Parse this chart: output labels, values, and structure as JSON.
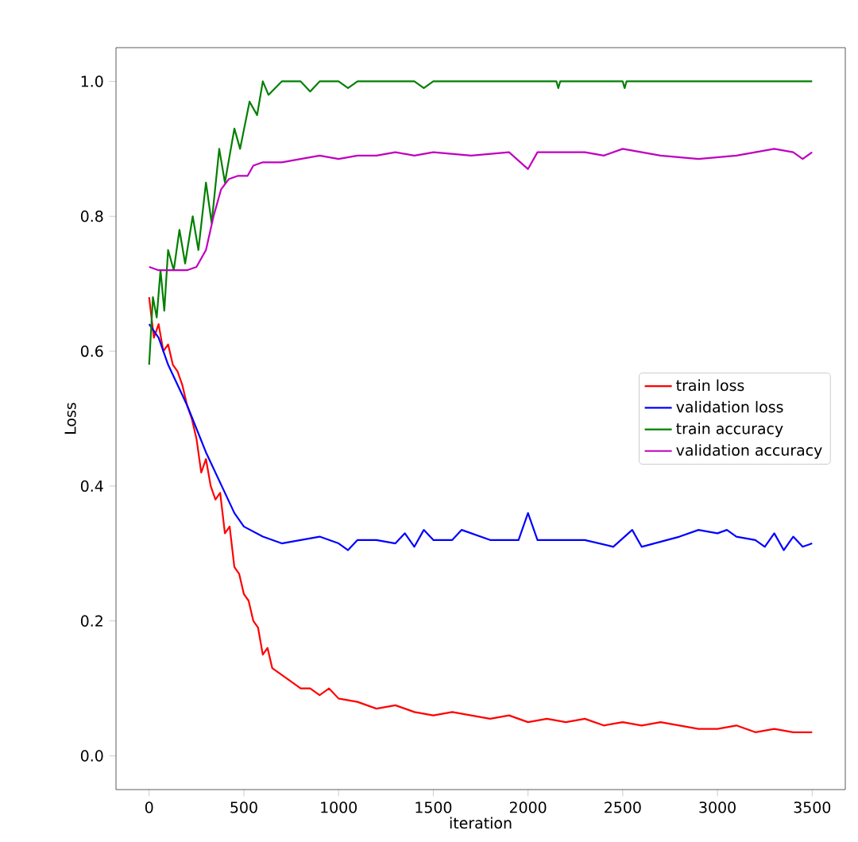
{
  "chart_data": {
    "type": "line",
    "xlabel": "iteration",
    "ylabel": "Loss",
    "xlim": [
      -175,
      3675
    ],
    "ylim": [
      -0.05,
      1.05
    ],
    "xticks": [
      0,
      500,
      1000,
      1500,
      2000,
      2500,
      3000,
      3500
    ],
    "yticks": [
      {
        "value": 0,
        "label": "0.0"
      },
      {
        "value": 0.2,
        "label": "0.2"
      },
      {
        "value": 0.4,
        "label": "0.4"
      },
      {
        "value": 0.6,
        "label": "0.6"
      },
      {
        "value": 0.8,
        "label": "0.8"
      },
      {
        "value": 1.0,
        "label": "1.0"
      }
    ],
    "legend": "right",
    "series": [
      {
        "name": "train loss",
        "color": "#ff0000",
        "x": [
          0,
          25,
          50,
          75,
          100,
          125,
          150,
          175,
          200,
          225,
          250,
          275,
          300,
          325,
          350,
          375,
          400,
          425,
          450,
          475,
          500,
          525,
          550,
          575,
          600,
          625,
          650,
          700,
          750,
          800,
          850,
          900,
          950,
          1000,
          1100,
          1200,
          1300,
          1400,
          1500,
          1600,
          1700,
          1800,
          1900,
          2000,
          2100,
          2200,
          2300,
          2400,
          2500,
          2600,
          2700,
          2800,
          2900,
          3000,
          3100,
          3200,
          3300,
          3400,
          3500
        ],
        "values": [
          0.68,
          0.62,
          0.64,
          0.6,
          0.61,
          0.58,
          0.57,
          0.55,
          0.52,
          0.5,
          0.47,
          0.42,
          0.44,
          0.4,
          0.38,
          0.39,
          0.33,
          0.34,
          0.28,
          0.27,
          0.24,
          0.23,
          0.2,
          0.19,
          0.15,
          0.16,
          0.13,
          0.12,
          0.11,
          0.1,
          0.1,
          0.09,
          0.1,
          0.085,
          0.08,
          0.07,
          0.075,
          0.065,
          0.06,
          0.065,
          0.06,
          0.055,
          0.06,
          0.05,
          0.055,
          0.05,
          0.055,
          0.045,
          0.05,
          0.045,
          0.05,
          0.045,
          0.04,
          0.04,
          0.045,
          0.035,
          0.04,
          0.035,
          0.035
        ]
      },
      {
        "name": "validation loss",
        "color": "#0000ff",
        "x": [
          0,
          50,
          100,
          200,
          300,
          400,
          450,
          500,
          600,
          700,
          800,
          900,
          1000,
          1050,
          1100,
          1200,
          1300,
          1350,
          1400,
          1450,
          1500,
          1600,
          1650,
          1800,
          1950,
          2000,
          2050,
          2300,
          2450,
          2550,
          2600,
          2800,
          2900,
          3000,
          3050,
          3100,
          3200,
          3250,
          3300,
          3350,
          3400,
          3450,
          3500
        ],
        "values": [
          0.64,
          0.62,
          0.58,
          0.52,
          0.45,
          0.39,
          0.36,
          0.34,
          0.325,
          0.315,
          0.32,
          0.325,
          0.315,
          0.305,
          0.32,
          0.32,
          0.315,
          0.33,
          0.31,
          0.335,
          0.32,
          0.32,
          0.335,
          0.32,
          0.32,
          0.36,
          0.32,
          0.32,
          0.31,
          0.335,
          0.31,
          0.325,
          0.335,
          0.33,
          0.335,
          0.325,
          0.32,
          0.31,
          0.33,
          0.305,
          0.325,
          0.31,
          0.315
        ]
      },
      {
        "name": "train accuracy",
        "color": "#008000",
        "x": [
          0,
          20,
          40,
          60,
          80,
          100,
          130,
          160,
          190,
          230,
          260,
          300,
          330,
          370,
          400,
          450,
          480,
          530,
          570,
          600,
          630,
          700,
          800,
          850,
          900,
          1000,
          1050,
          1100,
          1400,
          1450,
          1500,
          2150,
          2160,
          2170,
          2500,
          2510,
          2520,
          3500
        ],
        "values": [
          0.58,
          0.68,
          0.65,
          0.72,
          0.66,
          0.75,
          0.72,
          0.78,
          0.73,
          0.8,
          0.75,
          0.85,
          0.79,
          0.9,
          0.85,
          0.93,
          0.9,
          0.97,
          0.95,
          1.0,
          0.98,
          1.0,
          1.0,
          0.985,
          1.0,
          1.0,
          0.99,
          1.0,
          1.0,
          0.99,
          1.0,
          1.0,
          0.99,
          1.0,
          1.0,
          0.99,
          1.0,
          1.0
        ]
      },
      {
        "name": "validation accuracy",
        "color": "#bf00bf",
        "x": [
          0,
          50,
          100,
          200,
          250,
          300,
          340,
          380,
          420,
          470,
          520,
          550,
          600,
          700,
          800,
          900,
          1000,
          1100,
          1200,
          1300,
          1400,
          1500,
          1700,
          1900,
          2000,
          2050,
          2300,
          2400,
          2500,
          2600,
          2700,
          2900,
          3100,
          3200,
          3300,
          3400,
          3450,
          3500
        ],
        "values": [
          0.725,
          0.72,
          0.72,
          0.72,
          0.725,
          0.75,
          0.8,
          0.84,
          0.855,
          0.86,
          0.86,
          0.875,
          0.88,
          0.88,
          0.885,
          0.89,
          0.885,
          0.89,
          0.89,
          0.895,
          0.89,
          0.895,
          0.89,
          0.895,
          0.87,
          0.895,
          0.895,
          0.89,
          0.9,
          0.895,
          0.89,
          0.885,
          0.89,
          0.895,
          0.9,
          0.895,
          0.885,
          0.895
        ]
      }
    ]
  }
}
